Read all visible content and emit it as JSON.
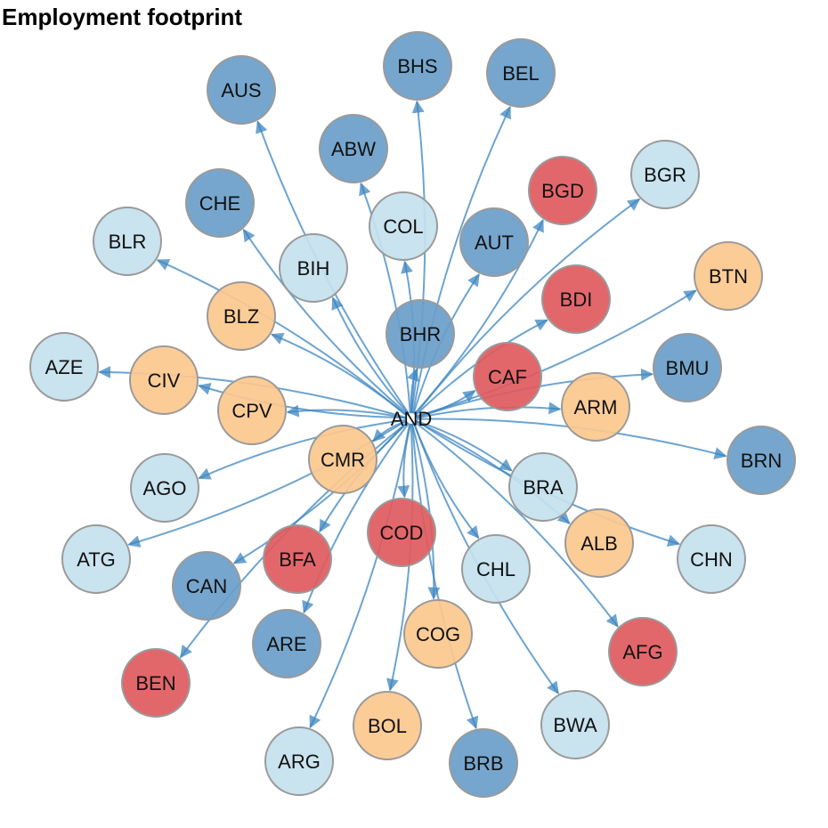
{
  "title": "Employment footprint",
  "colors": {
    "dark_blue": "#6a9ec9",
    "light_blue": "#c4e1ee",
    "orange": "#fcc88e",
    "red": "#e05a5e",
    "edge": "#3c86c0",
    "node_border": "#9a9a9a"
  },
  "hub": {
    "id": "AND"
  },
  "nodes": [
    {
      "id": "AUS",
      "color": "dark_blue"
    },
    {
      "id": "BHS",
      "color": "dark_blue"
    },
    {
      "id": "BEL",
      "color": "dark_blue"
    },
    {
      "id": "ABW",
      "color": "dark_blue"
    },
    {
      "id": "BGR",
      "color": "light_blue"
    },
    {
      "id": "BGD",
      "color": "red"
    },
    {
      "id": "CHE",
      "color": "dark_blue"
    },
    {
      "id": "COL",
      "color": "light_blue"
    },
    {
      "id": "AUT",
      "color": "dark_blue"
    },
    {
      "id": "BLR",
      "color": "light_blue"
    },
    {
      "id": "BIH",
      "color": "light_blue"
    },
    {
      "id": "BTN",
      "color": "orange"
    },
    {
      "id": "BDI",
      "color": "red"
    },
    {
      "id": "BLZ",
      "color": "orange"
    },
    {
      "id": "BHR",
      "color": "dark_blue"
    },
    {
      "id": "AZE",
      "color": "light_blue"
    },
    {
      "id": "CIV",
      "color": "orange"
    },
    {
      "id": "CAF",
      "color": "red"
    },
    {
      "id": "BMU",
      "color": "dark_blue"
    },
    {
      "id": "CPV",
      "color": "orange"
    },
    {
      "id": "ARM",
      "color": "orange"
    },
    {
      "id": "CMR",
      "color": "orange"
    },
    {
      "id": "BRN",
      "color": "dark_blue"
    },
    {
      "id": "AGO",
      "color": "light_blue"
    },
    {
      "id": "BRA",
      "color": "light_blue"
    },
    {
      "id": "COD",
      "color": "red"
    },
    {
      "id": "ATG",
      "color": "light_blue"
    },
    {
      "id": "BFA",
      "color": "red"
    },
    {
      "id": "ALB",
      "color": "orange"
    },
    {
      "id": "CHN",
      "color": "light_blue"
    },
    {
      "id": "CAN",
      "color": "dark_blue"
    },
    {
      "id": "CHL",
      "color": "light_blue"
    },
    {
      "id": "AFG",
      "color": "red"
    },
    {
      "id": "ARE",
      "color": "dark_blue"
    },
    {
      "id": "COG",
      "color": "orange"
    },
    {
      "id": "BEN",
      "color": "red"
    },
    {
      "id": "BOL",
      "color": "orange"
    },
    {
      "id": "BWA",
      "color": "light_blue"
    },
    {
      "id": "ARG",
      "color": "light_blue"
    },
    {
      "id": "BRB",
      "color": "dark_blue"
    }
  ]
}
